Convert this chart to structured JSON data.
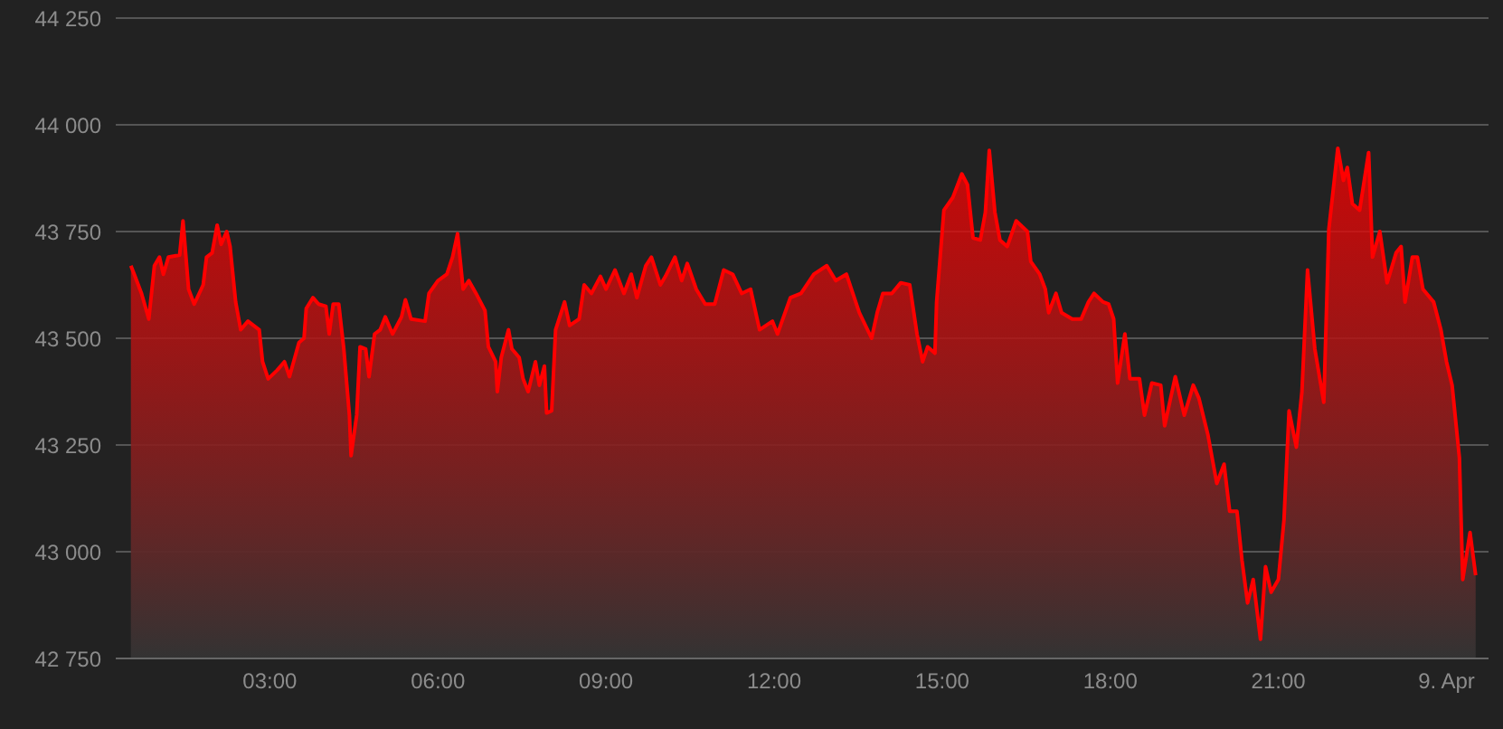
{
  "chart_data": {
    "type": "area",
    "grid": "y",
    "xlim": [
      0.25,
      24.75
    ],
    "xticks": [
      {
        "value": 3,
        "label": "03:00"
      },
      {
        "value": 6,
        "label": "06:00"
      },
      {
        "value": 9,
        "label": "09:00"
      },
      {
        "value": 12,
        "label": "12:00"
      },
      {
        "value": 15,
        "label": "15:00"
      },
      {
        "value": 18,
        "label": "18:00"
      },
      {
        "value": 21,
        "label": "21:00"
      },
      {
        "value": 24,
        "label": "9. Apr"
      }
    ],
    "ylim": [
      42750,
      44250
    ],
    "yticks": [
      {
        "value": 42750,
        "label": "42 750"
      },
      {
        "value": 43000,
        "label": "43 000"
      },
      {
        "value": 43250,
        "label": "43 250"
      },
      {
        "value": 43500,
        "label": "43 500"
      },
      {
        "value": 43750,
        "label": "43 750"
      },
      {
        "value": 44000,
        "label": "44 000"
      },
      {
        "value": 44250,
        "label": "44 250"
      }
    ],
    "x": [
      0.52,
      0.58,
      0.71,
      0.84,
      0.94,
      1.03,
      1.1,
      1.19,
      1.39,
      1.45,
      1.55,
      1.65,
      1.81,
      1.87,
      1.97,
      2.06,
      2.13,
      2.23,
      2.29,
      2.39,
      2.48,
      2.61,
      2.81,
      2.87,
      2.97,
      3.13,
      3.26,
      3.35,
      3.52,
      3.61,
      3.65,
      3.77,
      3.87,
      4.0,
      4.06,
      4.13,
      4.23,
      4.32,
      4.42,
      4.45,
      4.55,
      4.61,
      4.71,
      4.77,
      4.87,
      4.97,
      5.06,
      5.19,
      5.35,
      5.42,
      5.52,
      5.77,
      5.84,
      6.0,
      6.16,
      6.26,
      6.35,
      6.45,
      6.55,
      6.68,
      6.84,
      6.9,
      7.03,
      7.06,
      7.13,
      7.26,
      7.32,
      7.45,
      7.52,
      7.61,
      7.74,
      7.81,
      7.9,
      7.94,
      8.03,
      8.1,
      8.26,
      8.35,
      8.52,
      8.61,
      8.74,
      8.9,
      9.0,
      9.16,
      9.32,
      9.45,
      9.55,
      9.71,
      9.81,
      9.97,
      10.06,
      10.23,
      10.35,
      10.45,
      10.61,
      10.77,
      10.94,
      11.1,
      11.26,
      11.42,
      11.58,
      11.74,
      11.97,
      12.06,
      12.29,
      12.48,
      12.71,
      12.94,
      13.1,
      13.29,
      13.52,
      13.74,
      13.84,
      13.94,
      14.1,
      14.26,
      14.42,
      14.55,
      14.65,
      14.74,
      14.87,
      14.9,
      15.03,
      15.19,
      15.35,
      15.45,
      15.55,
      15.68,
      15.77,
      15.84,
      15.94,
      16.03,
      16.16,
      16.32,
      16.52,
      16.58,
      16.74,
      16.84,
      16.9,
      17.03,
      17.13,
      17.32,
      17.48,
      17.61,
      17.71,
      17.87,
      17.97,
      18.06,
      18.13,
      18.26,
      18.35,
      18.52,
      18.61,
      18.74,
      18.9,
      18.97,
      19.06,
      19.16,
      19.32,
      19.48,
      19.58,
      19.74,
      19.9,
      20.03,
      20.13,
      20.26,
      20.35,
      20.45,
      20.55,
      20.68,
      20.77,
      20.87,
      21.0,
      21.1,
      21.19,
      21.32,
      21.42,
      21.52,
      21.65,
      21.81,
      21.9,
      22.06,
      22.16,
      22.23,
      22.32,
      22.45,
      22.61,
      22.68,
      22.81,
      22.94,
      23.1,
      23.19,
      23.26,
      23.39,
      23.48,
      23.58,
      23.77,
      23.9,
      24.0,
      24.1,
      24.23,
      24.29,
      24.42,
      24.52
    ],
    "series": [
      {
        "color": "#ff0000",
        "values": [
          43670,
          43650,
          43605,
          43545,
          43670,
          43690,
          43650,
          43690,
          43695,
          43775,
          43615,
          43580,
          43625,
          43690,
          43700,
          43765,
          43720,
          43750,
          43715,
          43585,
          43520,
          43540,
          43520,
          43445,
          43405,
          43425,
          43445,
          43410,
          43490,
          43500,
          43570,
          43595,
          43580,
          43575,
          43510,
          43580,
          43580,
          43475,
          43320,
          43225,
          43320,
          43480,
          43475,
          43410,
          43510,
          43520,
          43550,
          43510,
          43550,
          43590,
          43545,
          43540,
          43605,
          43635,
          43650,
          43690,
          43745,
          43615,
          43635,
          43605,
          43565,
          43480,
          43445,
          43375,
          43455,
          43520,
          43475,
          43455,
          43405,
          43375,
          43445,
          43390,
          43435,
          43325,
          43330,
          43520,
          43585,
          43530,
          43545,
          43625,
          43605,
          43645,
          43615,
          43660,
          43605,
          43650,
          43595,
          43670,
          43690,
          43625,
          43645,
          43690,
          43635,
          43675,
          43615,
          43580,
          43580,
          43660,
          43650,
          43605,
          43615,
          43520,
          43540,
          43510,
          43595,
          43605,
          43650,
          43670,
          43635,
          43650,
          43560,
          43500,
          43560,
          43605,
          43605,
          43630,
          43625,
          43510,
          43445,
          43480,
          43465,
          43585,
          43800,
          43830,
          43885,
          43860,
          43735,
          43730,
          43795,
          43940,
          43795,
          43730,
          43715,
          43775,
          43750,
          43680,
          43650,
          43615,
          43560,
          43605,
          43560,
          43545,
          43545,
          43585,
          43605,
          43585,
          43580,
          43545,
          43395,
          43510,
          43405,
          43405,
          43320,
          43395,
          43390,
          43295,
          43350,
          43410,
          43320,
          43390,
          43360,
          43275,
          43160,
          43205,
          43095,
          43095,
          42980,
          42880,
          42935,
          42795,
          42965,
          42905,
          42935,
          43075,
          43330,
          43245,
          43375,
          43660,
          43475,
          43350,
          43755,
          43945,
          43870,
          43900,
          43815,
          43800,
          43935,
          43690,
          43750,
          43630,
          43700,
          43715,
          43585,
          43690,
          43690,
          43615,
          43585,
          43520,
          43445,
          43390,
          43220,
          42935,
          43045,
          42945
        ]
      }
    ]
  }
}
